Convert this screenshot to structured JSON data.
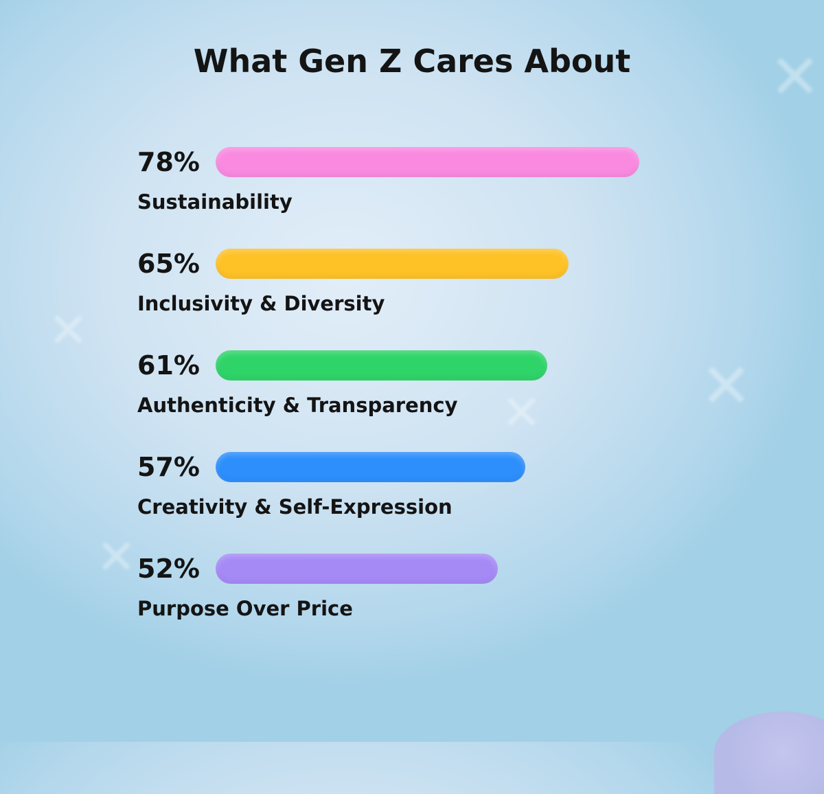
{
  "chart_data": {
    "type": "bar",
    "orientation": "horizontal",
    "title": "What Gen Z Cares About",
    "categories": [
      "Sustainability",
      "Inclusivity & Diversity",
      "Authenticity & Transparency",
      "Creativity & Self-Expression",
      "Purpose Over Price"
    ],
    "values": [
      78,
      65,
      61,
      57,
      52
    ],
    "value_labels": [
      "78%",
      "65%",
      "61%",
      "57%",
      "52%"
    ],
    "colors": [
      "#f98ae0",
      "#fec227",
      "#2fd469",
      "#2d8ffc",
      "#a58af6"
    ],
    "xlabel": "",
    "ylabel": "",
    "xlim": [
      0,
      100
    ],
    "grid": false
  }
}
